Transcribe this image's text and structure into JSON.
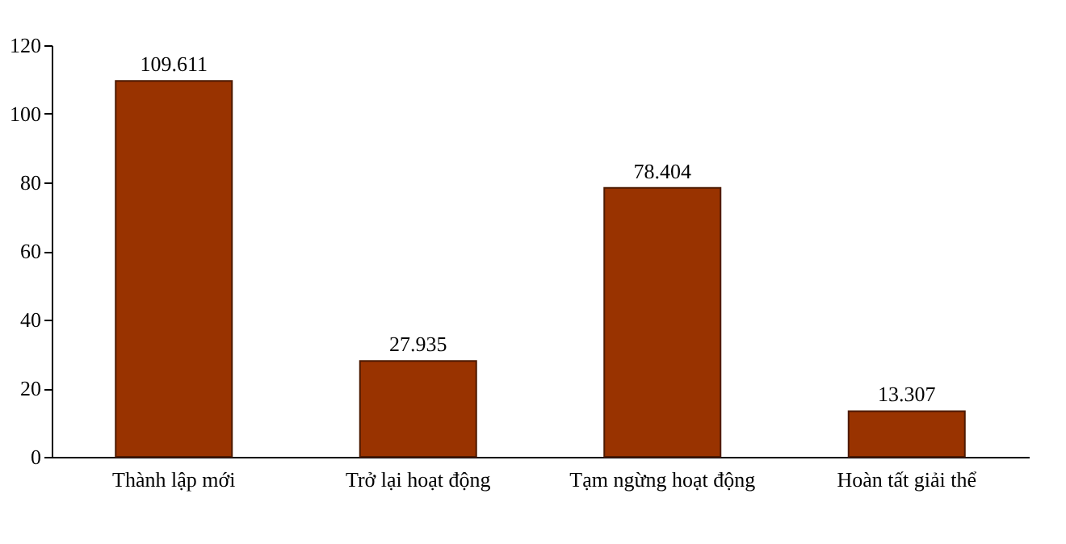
{
  "chart_data": {
    "type": "bar",
    "categories": [
      "Thành lập mới",
      "Trở lại hoạt động",
      "Tạm ngừng hoạt động",
      "Hoàn tất giải thể"
    ],
    "values": [
      109.611,
      27.935,
      78.404,
      13.307
    ],
    "color": "#993300",
    "ylim": [
      0,
      120
    ],
    "yticks": [
      0,
      20,
      40,
      60,
      80,
      100,
      120
    ],
    "grid": false,
    "data_labels": true
  }
}
